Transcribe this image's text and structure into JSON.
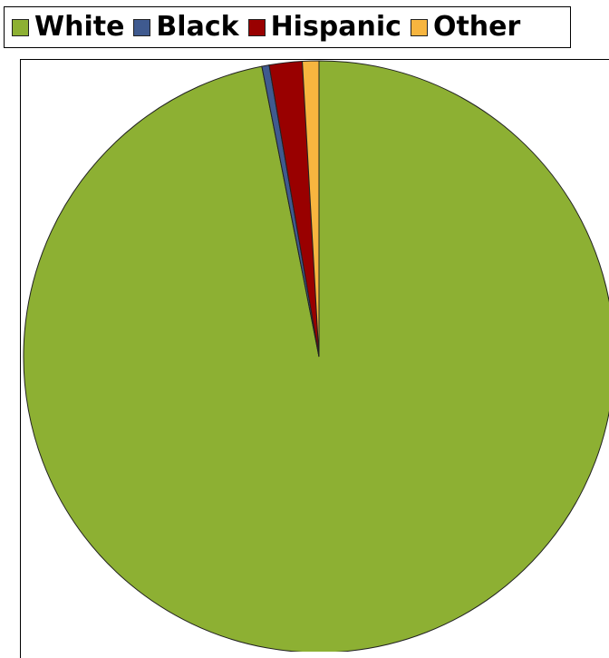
{
  "chart_data": {
    "type": "pie",
    "title": "",
    "categories": [
      "White",
      "Black",
      "Hispanic",
      "Other"
    ],
    "values": [
      96.9,
      0.4,
      1.8,
      0.9
    ],
    "colors": [
      "#8db033",
      "#3f5a8f",
      "#990000",
      "#f7b53f"
    ],
    "legend_position": "top",
    "start_angle": "12 o'clock, clockwise"
  },
  "legend": {
    "items": [
      {
        "label": "White",
        "color": "#8db033"
      },
      {
        "label": "Black",
        "color": "#3f5a8f"
      },
      {
        "label": "Hispanic",
        "color": "#990000"
      },
      {
        "label": "Other",
        "color": "#f7b53f"
      }
    ]
  }
}
